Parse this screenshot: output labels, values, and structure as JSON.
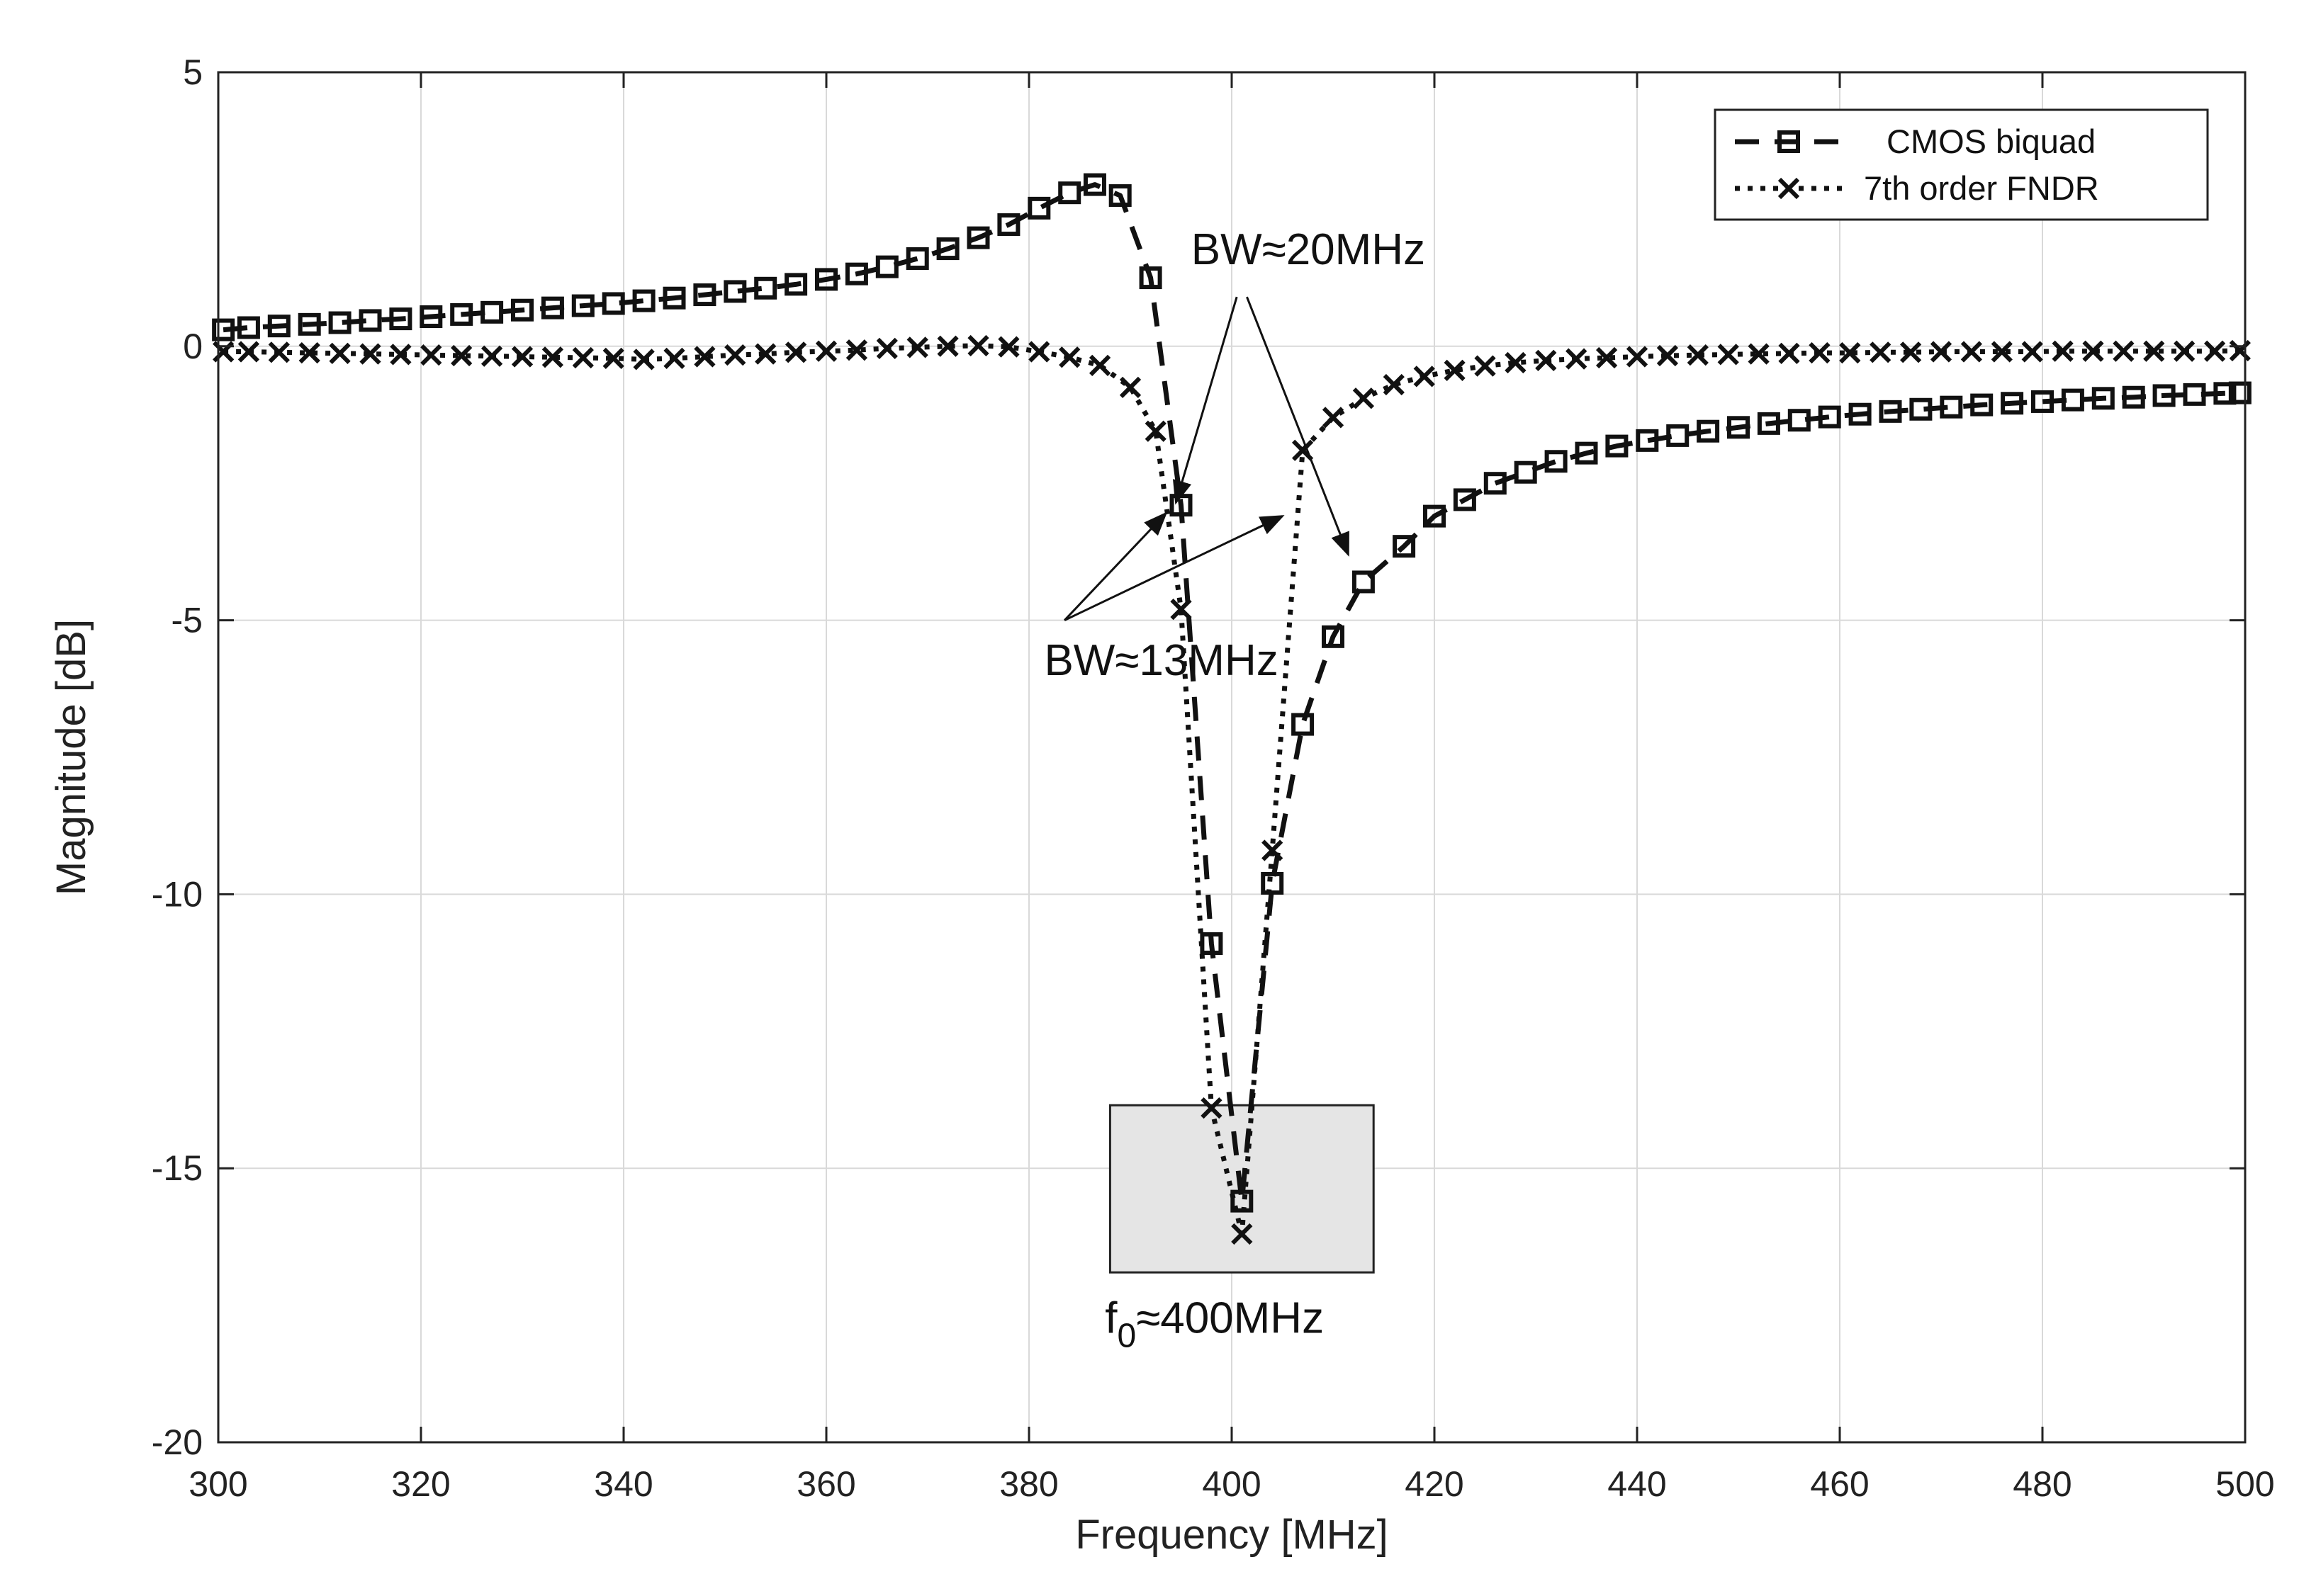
{
  "chart_data": {
    "type": "line",
    "xlabel": "Frequency [MHz]",
    "ylabel": "Magnitude [dB]",
    "xlim": [
      300,
      500
    ],
    "ylim": [
      -20,
      5
    ],
    "xticks": [
      300,
      320,
      340,
      360,
      380,
      400,
      420,
      440,
      460,
      480,
      500
    ],
    "yticks": [
      5,
      0,
      -5,
      -10,
      -15,
      -20
    ],
    "grid": true,
    "legend_position": "top-right",
    "series": [
      {
        "name": "CMOS biquad",
        "line_style": "dashed",
        "marker": "square",
        "color": "#111111",
        "x": [
          300.5,
          303,
          306,
          309,
          312,
          315,
          318,
          321,
          324,
          327,
          330,
          333,
          336,
          339,
          342,
          345,
          348,
          351,
          354,
          357,
          360,
          363,
          366,
          369,
          372,
          375,
          378,
          381,
          384,
          386.5,
          389,
          392,
          395,
          398,
          401,
          404,
          407,
          410,
          413,
          417,
          420,
          423,
          426,
          429,
          432,
          435,
          438,
          441,
          444,
          447,
          450,
          453,
          456,
          459,
          462,
          465,
          468,
          471,
          474,
          477,
          480,
          483,
          486,
          489,
          492,
          495,
          498,
          499.5
        ],
        "y": [
          0.3,
          0.34,
          0.37,
          0.4,
          0.43,
          0.47,
          0.5,
          0.54,
          0.58,
          0.62,
          0.66,
          0.7,
          0.74,
          0.78,
          0.83,
          0.88,
          0.94,
          1.0,
          1.06,
          1.13,
          1.22,
          1.32,
          1.45,
          1.6,
          1.78,
          1.98,
          2.22,
          2.52,
          2.8,
          2.95,
          2.75,
          1.25,
          -2.9,
          -10.9,
          -15.6,
          -9.8,
          -6.9,
          -5.3,
          -4.3,
          -3.65,
          -3.1,
          -2.8,
          -2.5,
          -2.3,
          -2.1,
          -1.95,
          -1.82,
          -1.72,
          -1.63,
          -1.55,
          -1.48,
          -1.41,
          -1.35,
          -1.29,
          -1.24,
          -1.19,
          -1.15,
          -1.11,
          -1.07,
          -1.04,
          -1.01,
          -0.98,
          -0.95,
          -0.93,
          -0.9,
          -0.88,
          -0.86,
          -0.85
        ]
      },
      {
        "name": "7th order FNDR",
        "line_style": "dotted",
        "marker": "x",
        "color": "#111111",
        "x": [
          300.5,
          303,
          306,
          309,
          312,
          315,
          318,
          321,
          324,
          327,
          330,
          333,
          336,
          339,
          342,
          345,
          348,
          351,
          354,
          357,
          360,
          363,
          366,
          369,
          372,
          375,
          378,
          381,
          384,
          387,
          390,
          392.5,
          395,
          398,
          401,
          404,
          407,
          410,
          413,
          416,
          419,
          422,
          425,
          428,
          431,
          434,
          437,
          440,
          443,
          446,
          449,
          452,
          455,
          458,
          461,
          464,
          467,
          470,
          473,
          476,
          479,
          482,
          485,
          488,
          491,
          494,
          497,
          499.5
        ],
        "y": [
          -0.1,
          -0.1,
          -0.11,
          -0.12,
          -0.13,
          -0.14,
          -0.15,
          -0.16,
          -0.17,
          -0.18,
          -0.19,
          -0.2,
          -0.21,
          -0.22,
          -0.24,
          -0.22,
          -0.19,
          -0.16,
          -0.14,
          -0.11,
          -0.09,
          -0.07,
          -0.04,
          -0.02,
          0.0,
          0.01,
          -0.01,
          -0.1,
          -0.2,
          -0.35,
          -0.75,
          -1.55,
          -4.8,
          -13.9,
          -16.2,
          -9.2,
          -1.9,
          -1.3,
          -0.95,
          -0.7,
          -0.55,
          -0.44,
          -0.36,
          -0.3,
          -0.26,
          -0.23,
          -0.21,
          -0.19,
          -0.17,
          -0.16,
          -0.15,
          -0.14,
          -0.13,
          -0.12,
          -0.12,
          -0.11,
          -0.11,
          -0.1,
          -0.1,
          -0.1,
          -0.1,
          -0.09,
          -0.09,
          -0.09,
          -0.09,
          -0.09,
          -0.09,
          -0.08
        ]
      }
    ],
    "annotations": {
      "bw20": {
        "label": "BW≈20MHz",
        "text_x": 396,
        "text_y": 1.5,
        "arrow_from_a": [
          400.5,
          0.9
        ],
        "arrow_to_a": [
          394.5,
          -2.85
        ],
        "arrow_from_b": [
          401.5,
          0.9
        ],
        "arrow_to_b": [
          411.5,
          -3.8
        ]
      },
      "bw13": {
        "label": "BW≈13MHz",
        "text_x": 381.5,
        "text_y": -6.0,
        "arrow_from_a": [
          383.5,
          -5.0
        ],
        "arrow_to_a": [
          393.5,
          -3.05
        ],
        "arrow_from_b": [
          383.5,
          -5.0
        ],
        "arrow_to_b": [
          405,
          -3.1
        ]
      },
      "f0": {
        "label_main": "f",
        "label_sub": "0",
        "label_rest": "≈400MHz",
        "text_x": 387.5,
        "text_y": -18.0,
        "box_x": [
          388,
          414
        ],
        "box_y": [
          -16.9,
          -13.85
        ]
      }
    }
  }
}
